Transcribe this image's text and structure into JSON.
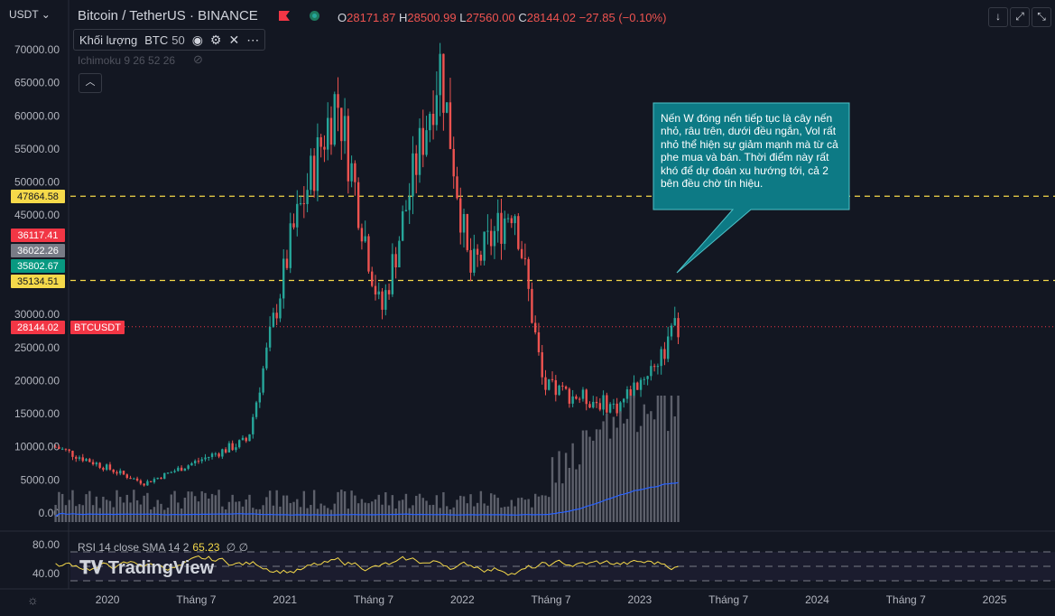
{
  "header": {
    "unit": "USDT ⌄",
    "title": "Bitcoin / TetherUS · BINANCE",
    "ohlc": {
      "o_label": "O",
      "o": "28171.87",
      "h_label": "H",
      "h": "28500.99",
      "l_label": "L",
      "l": "27560.00",
      "c_label": "C",
      "c": "28144.02",
      "change": "−27.85 (−0.10%)"
    },
    "buttons": [
      "↓",
      "⤢",
      "⤡"
    ]
  },
  "volume_legend": {
    "label": "Khối lượng",
    "unit": "BTC",
    "length": "50"
  },
  "ichimoku_legend": "Ichimoku 9 26 52 26",
  "collapse_icon": "chevron-up-icon",
  "price_axis": {
    "ticks": [
      "70000.00",
      "65000.00",
      "60000.00",
      "55000.00",
      "50000.00",
      "45000.00",
      "30000.00",
      "25000.00",
      "20000.00",
      "15000.00",
      "10000.00",
      "5000.00",
      "0.00"
    ],
    "badges": [
      {
        "text": "47864.58",
        "bg": "#f5d94a",
        "fg": "#131722"
      },
      {
        "text": "36117.41",
        "bg": "#f23645",
        "fg": "#ffffff"
      },
      {
        "text": "36022.26",
        "bg": "#787b86",
        "fg": "#ffffff"
      },
      {
        "text": "35802.67",
        "bg": "#089981",
        "fg": "#ffffff"
      },
      {
        "text": "35134.51",
        "bg": "#f5d94a",
        "fg": "#131722"
      },
      {
        "text": "28144.02",
        "bg": "#f23645",
        "fg": "#ffffff"
      }
    ],
    "symbol_tag": "BTCUSDT"
  },
  "rsi_axis": {
    "ticks": [
      "80.00",
      "40.00"
    ]
  },
  "time_axis": {
    "ticks": [
      "2020",
      "Tháng 7",
      "2021",
      "Tháng 7",
      "2022",
      "Tháng 7",
      "2023",
      "Tháng 7",
      "2024",
      "Tháng 7",
      "2025"
    ]
  },
  "callout": {
    "text": "Nến W đóng nến tiếp tục là cây nến nhỏ, râu trên, dưới đều ngắn, Vol rất nhỏ thể hiện sự giảm mạnh mà từ cả phe mua và bán. Thời điểm này rất khó để dự đoán xu hướng tới, cả 2 bên đều chờ tín hiệu.",
    "bg": "#0d7a85"
  },
  "rsi_legend": {
    "label": "RSI 14 close SMA 14 2",
    "value": "65.23",
    "extra": "∅ ∅"
  },
  "logo": "TradingView",
  "colors": {
    "up": "#26a69a",
    "down": "#ef5350",
    "volume": "#5d606b",
    "vol_ma": "#2962ff",
    "rsi": "#f5d94a",
    "guide": "#f5d94a"
  },
  "chart_data": [
    {
      "type": "candlestick",
      "title": "Bitcoin / TetherUS · BINANCE",
      "timeframe": "weekly",
      "ylim": [
        0,
        72000
      ],
      "x_range": [
        "2019-09",
        "2025-04"
      ],
      "levels": [
        47864.58,
        35134.51
      ],
      "last_price": 28144.02,
      "key_points": [
        {
          "x": "2019-09",
          "y": 10000
        },
        {
          "x": "2020-03",
          "y": 4500
        },
        {
          "x": "2020-10",
          "y": 11000
        },
        {
          "x": "2021-01",
          "y": 42000
        },
        {
          "x": "2021-04",
          "y": 63000
        },
        {
          "x": "2021-07",
          "y": 30000
        },
        {
          "x": "2021-11",
          "y": 68000
        },
        {
          "x": "2022-01",
          "y": 36000
        },
        {
          "x": "2022-04",
          "y": 47000
        },
        {
          "x": "2022-06",
          "y": 19000
        },
        {
          "x": "2022-11",
          "y": 16000
        },
        {
          "x": "2023-02",
          "y": 24000
        },
        {
          "x": "2023-03",
          "y": 28144
        }
      ]
    },
    {
      "type": "line",
      "title": "RSI 14",
      "ylim": [
        20,
        90
      ],
      "bands": [
        70,
        50,
        30
      ],
      "last_value": 65.23
    }
  ]
}
